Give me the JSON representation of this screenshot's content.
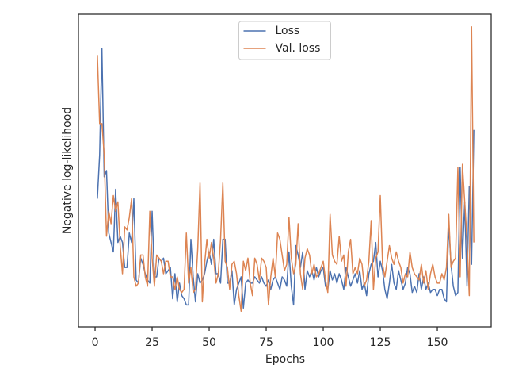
{
  "chart_data": {
    "type": "line",
    "xlabel": "Epochs",
    "ylabel": "Negative log-likelihood",
    "x": [
      1,
      2,
      3,
      4,
      5,
      6,
      7,
      8,
      9,
      10,
      11,
      12,
      13,
      14,
      15,
      16,
      17,
      18,
      19,
      20,
      21,
      22,
      23,
      24,
      25,
      26,
      27,
      28,
      29,
      30,
      31,
      32,
      33,
      34,
      35,
      36,
      37,
      38,
      39,
      40,
      41,
      42,
      43,
      44,
      45,
      46,
      47,
      48,
      49,
      50,
      51,
      52,
      53,
      54,
      55,
      56,
      57,
      58,
      59,
      60,
      61,
      62,
      63,
      64,
      65,
      66,
      67,
      68,
      69,
      70,
      71,
      72,
      73,
      74,
      75,
      76,
      77,
      78,
      79,
      80,
      81,
      82,
      83,
      84,
      85,
      86,
      87,
      88,
      89,
      90,
      91,
      92,
      93,
      94,
      95,
      96,
      97,
      98,
      99,
      100,
      101,
      102,
      103,
      104,
      105,
      106,
      107,
      108,
      109,
      110,
      111,
      112,
      113,
      114,
      115,
      116,
      117,
      118,
      119,
      120,
      121,
      122,
      123,
      124,
      125,
      126,
      127,
      128,
      129,
      130,
      131,
      132,
      133,
      134,
      135,
      136,
      137,
      138,
      139,
      140,
      141,
      142,
      143,
      144,
      145,
      146,
      147,
      148,
      149,
      150,
      151,
      152,
      153,
      154,
      155,
      156,
      157,
      158,
      159,
      160,
      161,
      162,
      163,
      164,
      165,
      166
    ],
    "series": [
      {
        "name": "Loss",
        "color": "#4c72b0",
        "values": [
          41,
          55,
          89,
          48,
          50,
          30,
          27,
          24,
          44,
          27,
          29,
          27,
          19,
          19,
          30,
          27,
          41,
          15,
          14,
          22,
          20,
          17,
          15,
          14,
          37,
          16,
          16,
          22,
          21,
          22,
          17,
          18,
          19,
          9,
          17,
          8,
          14,
          10,
          9,
          7,
          7,
          28,
          16,
          8,
          17,
          14,
          15,
          17,
          21,
          24,
          20,
          28,
          17,
          17,
          14,
          28,
          28,
          14,
          14,
          18,
          7,
          12,
          14,
          16,
          6,
          14,
          15,
          14,
          14,
          16,
          15,
          14,
          16,
          14,
          13,
          15,
          12,
          15,
          16,
          14,
          12,
          16,
          15,
          13,
          24,
          13,
          7,
          26,
          23,
          19,
          24,
          12,
          18,
          16,
          18,
          15,
          19,
          16,
          18,
          19,
          13,
          12,
          18,
          15,
          17,
          14,
          17,
          15,
          12,
          19,
          16,
          13,
          15,
          17,
          14,
          18,
          12,
          14,
          10,
          17,
          20,
          21,
          27,
          16,
          21,
          18,
          12,
          9,
          14,
          20,
          14,
          12,
          18,
          15,
          12,
          14,
          19,
          17,
          11,
          13,
          11,
          17,
          12,
          16,
          12,
          14,
          11,
          12,
          12,
          10,
          12,
          12,
          9,
          8,
          33,
          20,
          13,
          10,
          11,
          51,
          22,
          40,
          13,
          45,
          20,
          63
        ]
      },
      {
        "name": "Val. loss",
        "color": "#dd8452",
        "values": [
          87,
          65,
          65,
          55,
          29,
          37,
          33,
          42,
          37,
          40,
          26,
          17,
          32,
          31,
          35,
          41,
          16,
          13,
          14,
          23,
          23,
          16,
          13,
          37,
          22,
          13,
          23,
          22,
          21,
          17,
          21,
          21,
          16,
          16,
          12,
          16,
          12,
          11,
          12,
          30,
          14,
          19,
          11,
          12,
          25,
          46,
          8,
          20,
          28,
          22,
          27,
          22,
          14,
          17,
          28,
          46,
          21,
          19,
          12,
          20,
          21,
          17,
          10,
          5,
          21,
          18,
          22,
          14,
          10,
          22,
          20,
          15,
          22,
          21,
          19,
          7,
          16,
          22,
          16,
          30,
          28,
          23,
          18,
          20,
          35,
          22,
          17,
          20,
          33,
          17,
          12,
          22,
          25,
          23,
          17,
          20,
          16,
          17,
          19,
          21,
          15,
          11,
          36,
          23,
          21,
          20,
          29,
          21,
          23,
          13,
          24,
          28,
          17,
          19,
          17,
          22,
          20,
          13,
          15,
          21,
          34,
          12,
          22,
          24,
          42,
          20,
          16,
          21,
          26,
          22,
          20,
          24,
          21,
          19,
          14,
          17,
          16,
          24,
          19,
          17,
          16,
          15,
          20,
          14,
          18,
          12,
          17,
          20,
          16,
          14,
          14,
          17,
          15,
          19,
          36,
          19,
          21,
          22,
          51,
          16,
          52,
          40,
          28,
          10,
          96,
          27
        ]
      }
    ],
    "xlim": [
      -7.3,
      173.6
    ],
    "ylim": [
      0,
      100
    ],
    "xticks": [
      0,
      25,
      50,
      75,
      100,
      125,
      150
    ],
    "legend": "upper center"
  }
}
